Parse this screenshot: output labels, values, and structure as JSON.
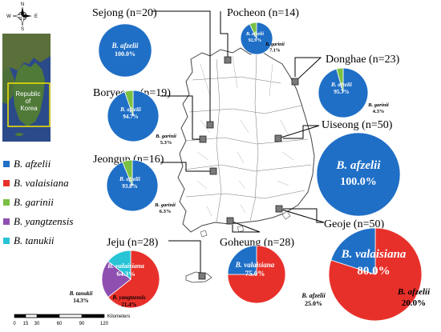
{
  "colors": {
    "B. afzelii": "#1f6fc6",
    "B. valaisiana": "#e8302a",
    "B. garinii": "#7ac043",
    "B. yangtzensis": "#8e4fb0",
    "B. tanukii": "#27c4d6"
  },
  "legend": [
    {
      "species": "B. afzelii",
      "color": "#1f6fc6"
    },
    {
      "species": "B. valaisiana",
      "color": "#e8302a"
    },
    {
      "species": "B. garinii",
      "color": "#7ac043"
    },
    {
      "species": "B. yangtzensis",
      "color": "#8e4fb0"
    },
    {
      "species": "B. tanukii",
      "color": "#27c4d6"
    }
  ],
  "compass": {
    "n": "N",
    "s": "S",
    "e": "E",
    "w": "W"
  },
  "inset": {
    "country_label": "Republic of Korea"
  },
  "scale_bar": {
    "ticks": [
      "0",
      "15",
      "30",
      "60",
      "90",
      "120"
    ],
    "unit": "Kilometers"
  },
  "chart_data": [
    {
      "type": "pie",
      "site": "Sejong",
      "title": "Sejong (n=20)",
      "slices": [
        {
          "species": "B. afzelii",
          "value": 100.0,
          "label": "100.0%"
        }
      ]
    },
    {
      "type": "pie",
      "site": "Pocheon",
      "title": "Pocheon (n=14)",
      "slices": [
        {
          "species": "B. afzelii",
          "value": 92.9,
          "label": "92.9%"
        },
        {
          "species": "B. garinii",
          "value": 7.1,
          "label": "7.1%"
        }
      ]
    },
    {
      "type": "pie",
      "site": "Donghae",
      "title": "Donghae (n=23)",
      "slices": [
        {
          "species": "B. afzelii",
          "value": 95.7,
          "label": "95.7%"
        },
        {
          "species": "B. garinii",
          "value": 4.3,
          "label": "4.3%"
        }
      ]
    },
    {
      "type": "pie",
      "site": "Boryeong",
      "title": "Boryeong (n=19)",
      "slices": [
        {
          "species": "B. afzelii",
          "value": 94.7,
          "label": "94.7%"
        },
        {
          "species": "B. garinii",
          "value": 5.3,
          "label": "5.3%"
        }
      ]
    },
    {
      "type": "pie",
      "site": "Uiseong",
      "title": "Uiseong (n=50)",
      "slices": [
        {
          "species": "B. afzelii",
          "value": 100.0,
          "label": "100.0%"
        }
      ]
    },
    {
      "type": "pie",
      "site": "Jeongup",
      "title": "Jeongup (n=16)",
      "slices": [
        {
          "species": "B. afzelii",
          "value": 93.8,
          "label": "93.8%"
        },
        {
          "species": "B. garinii",
          "value": 6.3,
          "label": "6.3%"
        }
      ]
    },
    {
      "type": "pie",
      "site": "Jeju",
      "title": "Jeju (n=28)",
      "slices": [
        {
          "species": "B. valaisiana",
          "value": 64.3,
          "label": "64.3%"
        },
        {
          "species": "B. yangtzensis",
          "value": 21.4,
          "label": "21.4%"
        },
        {
          "species": "B. tanukii",
          "value": 14.3,
          "label": "14.3%"
        }
      ]
    },
    {
      "type": "pie",
      "site": "Goheung",
      "title": "Goheung (n=28)",
      "slices": [
        {
          "species": "B. valaisiana",
          "value": 75.0,
          "label": "75.0%"
        },
        {
          "species": "B. afzelii",
          "value": 25.0,
          "label": "25.0%"
        }
      ]
    },
    {
      "type": "pie",
      "site": "Geoje",
      "title": "Geoje (n=50)",
      "slices": [
        {
          "species": "B. valaisiana",
          "value": 80.0,
          "label": "80.0%"
        },
        {
          "species": "B. afzelii",
          "value": 20.0,
          "label": "20.0%"
        }
      ]
    }
  ]
}
